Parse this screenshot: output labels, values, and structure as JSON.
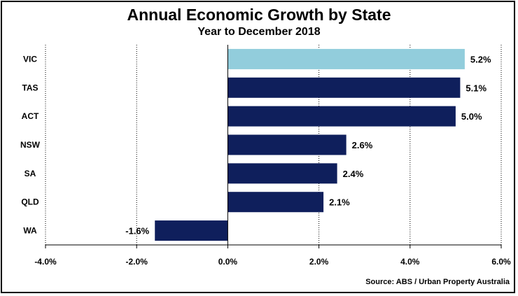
{
  "chart_data": {
    "type": "bar",
    "orientation": "horizontal",
    "title": "Annual Economic Growth by State",
    "subtitle": "Year to December 2018",
    "source": "Source: ABS / Urban Property Australia",
    "categories": [
      "VIC",
      "TAS",
      "ACT",
      "NSW",
      "SA",
      "QLD",
      "WA"
    ],
    "values": [
      5.2,
      5.1,
      5.0,
      2.6,
      2.4,
      2.1,
      -1.6
    ],
    "data_labels": [
      "5.2%",
      "5.1%",
      "5.0%",
      "2.6%",
      "2.4%",
      "2.1%",
      "-1.6%"
    ],
    "xlim": [
      -4.0,
      6.0
    ],
    "x_ticks": [
      -4.0,
      -2.0,
      0.0,
      2.0,
      4.0,
      6.0
    ],
    "x_tick_labels": [
      "-4.0%",
      "-2.0%",
      "0.0%",
      "2.0%",
      "4.0%",
      "6.0%"
    ],
    "grid": "vertical dotted",
    "colors": {
      "highlight": "#92CDDC",
      "default": "#0F1F5C"
    },
    "highlight_category": "VIC"
  }
}
